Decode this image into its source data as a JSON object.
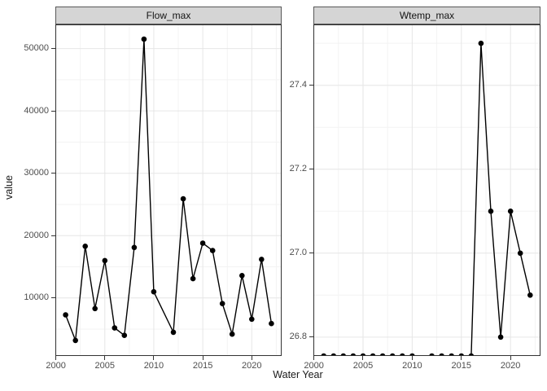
{
  "chart_data": {
    "type": "line",
    "title": "",
    "xlabel": "Water Year",
    "ylabel": "value",
    "legend": "none",
    "grid": "major and minor gridlines, light grey on white panels",
    "marker": "filled black circle on black line",
    "xlim": [
      1999.95,
      2023.05
    ],
    "x_ticks": {
      "values": [
        2000,
        2005,
        2010,
        2015,
        2020
      ],
      "labels": [
        "2000",
        "2005",
        "2010",
        "2015",
        "2020"
      ]
    },
    "x_minor_ticks": [
      2002.5,
      2007.5,
      2012.5,
      2017.5,
      2022.5
    ],
    "x": [
      2001,
      2002,
      2003,
      2004,
      2005,
      2006,
      2007,
      2008,
      2009,
      2010,
      2012,
      2013,
      2014,
      2015,
      2016,
      2017,
      2018,
      2019,
      2020,
      2021,
      2022
    ],
    "x_note": "no data point for 2011 in either facet",
    "facets": [
      {
        "title": "Flow_max",
        "values": [
          7300,
          3200,
          18300,
          8300,
          16000,
          5200,
          4000,
          18100,
          51500,
          11000,
          4500,
          25900,
          13100,
          18800,
          17600,
          9100,
          4200,
          13600,
          6600,
          16200,
          5900
        ],
        "ylim": [
          700,
          53870
        ],
        "y_ticks": {
          "values": [
            10000,
            20000,
            30000,
            40000,
            50000
          ],
          "labels": [
            "10000",
            "20000",
            "30000",
            "40000",
            "50000"
          ]
        },
        "y_minor_ticks": [
          5000,
          15000,
          25000,
          35000,
          45000
        ]
      },
      {
        "title": "Wtemp_max",
        "values": [
          26.755,
          26.755,
          26.755,
          26.755,
          26.755,
          26.755,
          26.755,
          26.755,
          26.755,
          26.755,
          26.755,
          26.755,
          26.755,
          26.755,
          26.755,
          27.5,
          27.1,
          26.8,
          27.1,
          27.0,
          26.9
        ],
        "ylim": [
          26.755,
          27.545
        ],
        "y_ticks": {
          "values": [
            26.8,
            27.0,
            27.2,
            27.4
          ],
          "labels": [
            "26.8",
            "27.0",
            "27.2",
            "27.4"
          ]
        },
        "y_minor_ticks": [
          26.9,
          27.1,
          27.3,
          27.5
        ]
      }
    ]
  },
  "theme": {
    "background": "#ffffff",
    "strip_fill": "#d5d5d5",
    "strip_border": "#595959",
    "panel_fill": "#ffffff",
    "panel_border": "#333333",
    "grid_major": "#e6e6e6",
    "grid_minor": "#f3f3f3",
    "tick_color": "#333333",
    "axis_text_color": "#4d4d4d",
    "axis_title_color": "#1a1a1a",
    "line_color": "#000000",
    "point_color": "#000000"
  }
}
